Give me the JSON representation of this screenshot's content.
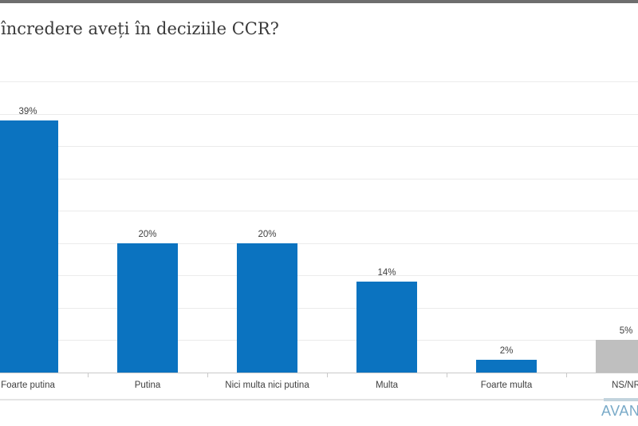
{
  "chart_data": {
    "type": "bar",
    "title": "încredere aveți în deciziile CCR?",
    "categories": [
      "Foarte putina",
      "Putina",
      "Nici multa nici putina",
      "Multa",
      "Foarte multa",
      "NS/NR"
    ],
    "values": [
      39,
      20,
      20,
      14,
      2,
      5
    ],
    "value_labels": [
      "39%",
      "20%",
      "20%",
      "14%",
      "2%",
      "5%"
    ],
    "bar_colors": [
      "#0b73c0",
      "#0b73c0",
      "#0b73c0",
      "#0b73c0",
      "#0b73c0",
      "#bfbfbf"
    ],
    "xlabel": "",
    "ylabel": "",
    "ylim": [
      0,
      45
    ],
    "grid": true,
    "grid_step": 5,
    "legend": "none",
    "y_tick_labels_visible": false
  },
  "branding": {
    "logo_text": "AVANGARDE"
  },
  "colors": {
    "top_band": "#6e6e6e",
    "bar_blue": "#0b73c0",
    "bar_gray": "#bfbfbf",
    "gridline": "#ebebeb",
    "axis": "#c9c9c9",
    "bottom_rule": "#e4e4e4",
    "label_text": "#3f3f3f",
    "title_text": "#3a3a3a",
    "logo": "#79aac8"
  }
}
